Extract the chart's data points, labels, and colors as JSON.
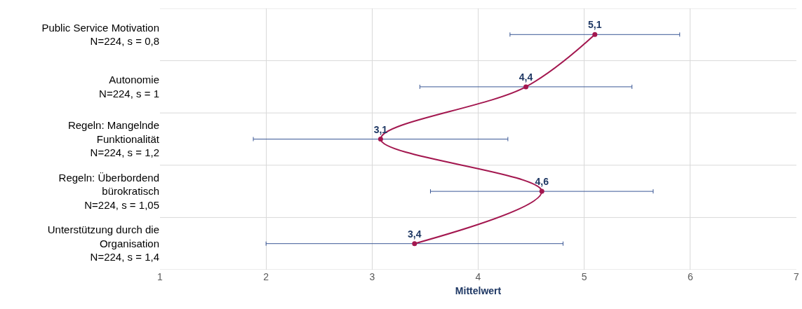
{
  "chart_data": {
    "type": "line",
    "orientation": "horizontal",
    "xlabel": "Mittelwert",
    "categories": [
      "Public Service Motivation\nN=224, s = 0,8",
      "Autonomie\nN=224, s = 1",
      "Regeln: Mangelnde\nFunktionalität\nN=224, s = 1,2",
      "Regeln: Überbordend\nbürokratisch\nN=224, s = 1,05",
      "Unterstützung durch die\nOrganisation\nN=224, s = 1,4"
    ],
    "series": [
      {
        "color": "#a3174f",
        "values": [
          5.1,
          4.45,
          3.08,
          4.6,
          3.4
        ],
        "errors": [
          0.8,
          1,
          1.2,
          1.05,
          1.4
        ],
        "value_labels": [
          "5,1",
          "4,4",
          "3,1",
          "4,6",
          "3,4"
        ]
      }
    ],
    "xlim": [
      1,
      7
    ],
    "xticks": [
      1,
      2,
      3,
      4,
      5,
      6,
      7
    ],
    "grid": true,
    "marker": "circle",
    "line_style": "solid"
  }
}
